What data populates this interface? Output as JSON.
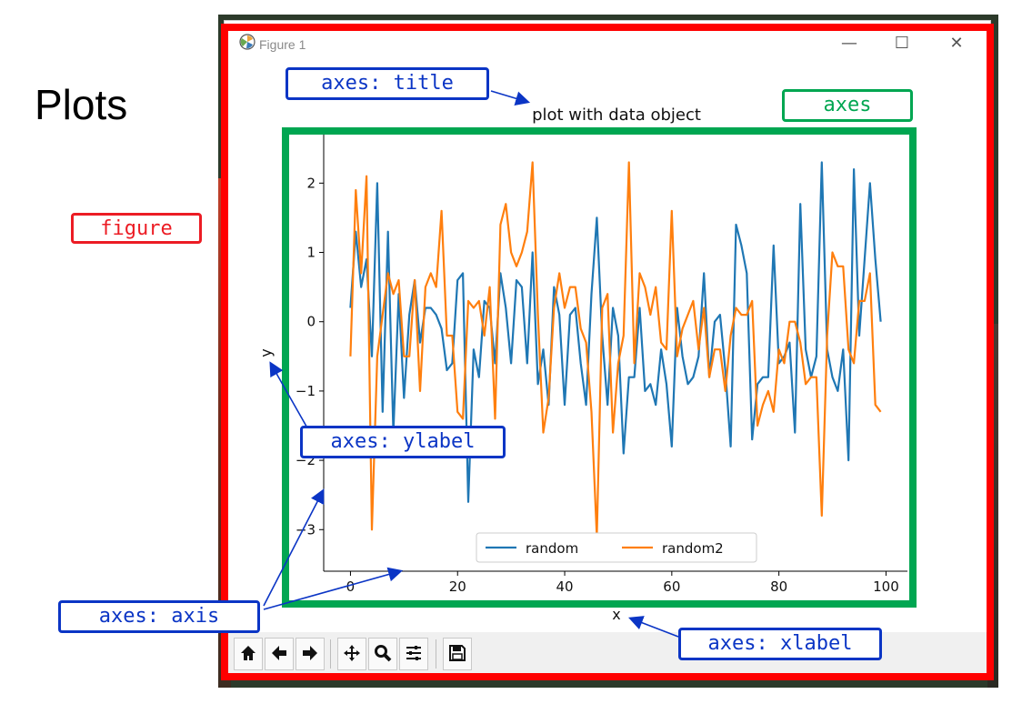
{
  "slide": {
    "title": "Plots"
  },
  "window": {
    "title": "Figure 1",
    "controls": {
      "minimize": "—",
      "maximize": "☐",
      "close": "✕"
    }
  },
  "colors": {
    "figure": "#ff0000",
    "axes": "#00a651",
    "callout": "#0b35c5",
    "series1": "#1f77b4",
    "series2": "#ff7f0e"
  },
  "callouts": {
    "title": "axes: title",
    "axes": "axes",
    "figure": "figure",
    "ylabel": "axes: ylabel",
    "axis": "axes: axis",
    "xlabel": "axes: xlabel"
  },
  "toolbar": {
    "icons": [
      "home-icon",
      "back-arrow-icon",
      "forward-arrow-icon",
      "pan-icon",
      "zoom-icon",
      "configure-icon",
      "save-icon"
    ]
  },
  "chart_data": {
    "type": "line",
    "title": "plot with data object",
    "xlabel": "x",
    "ylabel": "y",
    "xlim": [
      -5,
      104
    ],
    "ylim": [
      -3.6,
      2.7
    ],
    "xticks": [
      0,
      20,
      40,
      60,
      80,
      100
    ],
    "yticks": [
      -3,
      -2,
      -1,
      0,
      1,
      2
    ],
    "legend": "bottom-center",
    "series": [
      {
        "name": "random",
        "color": "#1f77b4",
        "x": [
          0,
          1,
          2,
          3,
          4,
          5,
          6,
          7,
          8,
          9,
          10,
          11,
          12,
          13,
          14,
          15,
          16,
          17,
          18,
          19,
          20,
          21,
          22,
          23,
          24,
          25,
          26,
          27,
          28,
          29,
          30,
          31,
          32,
          33,
          34,
          35,
          36,
          37,
          38,
          39,
          40,
          41,
          42,
          43,
          44,
          45,
          46,
          47,
          48,
          49,
          50,
          51,
          52,
          53,
          54,
          55,
          56,
          57,
          58,
          59,
          60,
          61,
          62,
          63,
          64,
          65,
          66,
          67,
          68,
          69,
          70,
          71,
          72,
          73,
          74,
          75,
          76,
          77,
          78,
          79,
          80,
          81,
          82,
          83,
          84,
          85,
          86,
          87,
          88,
          89,
          90,
          91,
          92,
          93,
          94,
          95,
          96,
          97,
          98,
          99
        ],
        "values": [
          0.2,
          1.3,
          0.5,
          0.9,
          -0.5,
          2.0,
          -1.3,
          1.3,
          -1.6,
          0.4,
          -1.1,
          0.1,
          0.6,
          -0.3,
          0.2,
          0.2,
          0.1,
          -0.1,
          -0.7,
          -0.6,
          0.6,
          0.7,
          -2.6,
          -0.4,
          -0.8,
          0.3,
          0.2,
          -0.6,
          0.7,
          0.2,
          -0.6,
          0.6,
          0.5,
          -0.6,
          1.0,
          -0.9,
          -0.4,
          -1.2,
          0.5,
          0.1,
          -1.2,
          0.1,
          0.2,
          -0.6,
          -1.2,
          0.4,
          1.5,
          -0.2,
          -1.2,
          0.2,
          -0.2,
          -1.9,
          -0.8,
          -0.8,
          0.2,
          -1.0,
          -0.9,
          -1.2,
          -0.4,
          -0.9,
          -1.8,
          0.2,
          -0.5,
          -0.9,
          -0.8,
          -0.5,
          0.7,
          -0.8,
          0.0,
          0.1,
          -0.7,
          -1.8,
          1.4,
          1.1,
          0.7,
          -1.7,
          -0.9,
          -0.8,
          -0.8,
          1.1,
          -0.6,
          -0.5,
          -0.3,
          -1.6,
          1.7,
          -0.4,
          -0.8,
          -0.5,
          2.3,
          -0.4,
          -0.8,
          -1.0,
          -0.4,
          -2.0,
          2.2,
          -0.2,
          0.9,
          2.0,
          0.9,
          0.0
        ]
      },
      {
        "name": "random2",
        "color": "#ff7f0e",
        "x": [
          0,
          1,
          2,
          3,
          4,
          5,
          6,
          7,
          8,
          9,
          10,
          11,
          12,
          13,
          14,
          15,
          16,
          17,
          18,
          19,
          20,
          21,
          22,
          23,
          24,
          25,
          26,
          27,
          28,
          29,
          30,
          31,
          32,
          33,
          34,
          35,
          36,
          37,
          38,
          39,
          40,
          41,
          42,
          43,
          44,
          45,
          46,
          47,
          48,
          49,
          50,
          51,
          52,
          53,
          54,
          55,
          56,
          57,
          58,
          59,
          60,
          61,
          62,
          63,
          64,
          65,
          66,
          67,
          68,
          69,
          70,
          71,
          72,
          73,
          74,
          75,
          76,
          77,
          78,
          79,
          80,
          81,
          82,
          83,
          84,
          85,
          86,
          87,
          88,
          89,
          90,
          91,
          92,
          93,
          94,
          95,
          96,
          97,
          98,
          99
        ],
        "values": [
          -0.5,
          1.9,
          0.7,
          2.1,
          -3.0,
          -0.5,
          0.1,
          0.7,
          0.4,
          0.6,
          -0.5,
          -0.5,
          0.6,
          -1.0,
          0.5,
          0.7,
          0.5,
          1.6,
          -0.2,
          -0.2,
          -1.3,
          -1.4,
          0.3,
          0.2,
          0.3,
          -0.2,
          0.5,
          -1.4,
          1.4,
          1.7,
          1.0,
          0.8,
          1.0,
          1.3,
          2.3,
          0.1,
          -1.6,
          -1.1,
          0.2,
          0.7,
          0.2,
          0.5,
          0.5,
          -0.1,
          -0.3,
          -1.3,
          -3.1,
          0.2,
          0.4,
          -1.6,
          -0.6,
          -0.2,
          2.3,
          -0.6,
          0.7,
          0.5,
          0.1,
          0.5,
          -0.3,
          -0.4,
          1.6,
          -0.5,
          -0.1,
          0.1,
          0.3,
          -0.4,
          0.2,
          -0.8,
          -0.4,
          -0.4,
          -1.0,
          -0.2,
          0.2,
          0.1,
          0.1,
          0.3,
          -1.5,
          -1.2,
          -1.0,
          -1.3,
          -0.4,
          -0.6,
          0.0,
          0.0,
          -0.3,
          -0.9,
          -0.8,
          -0.8,
          -2.8,
          -0.2,
          1.0,
          0.8,
          0.8,
          -0.4,
          -0.6,
          0.3,
          0.3,
          0.7,
          -1.2,
          -1.3
        ]
      }
    ]
  }
}
